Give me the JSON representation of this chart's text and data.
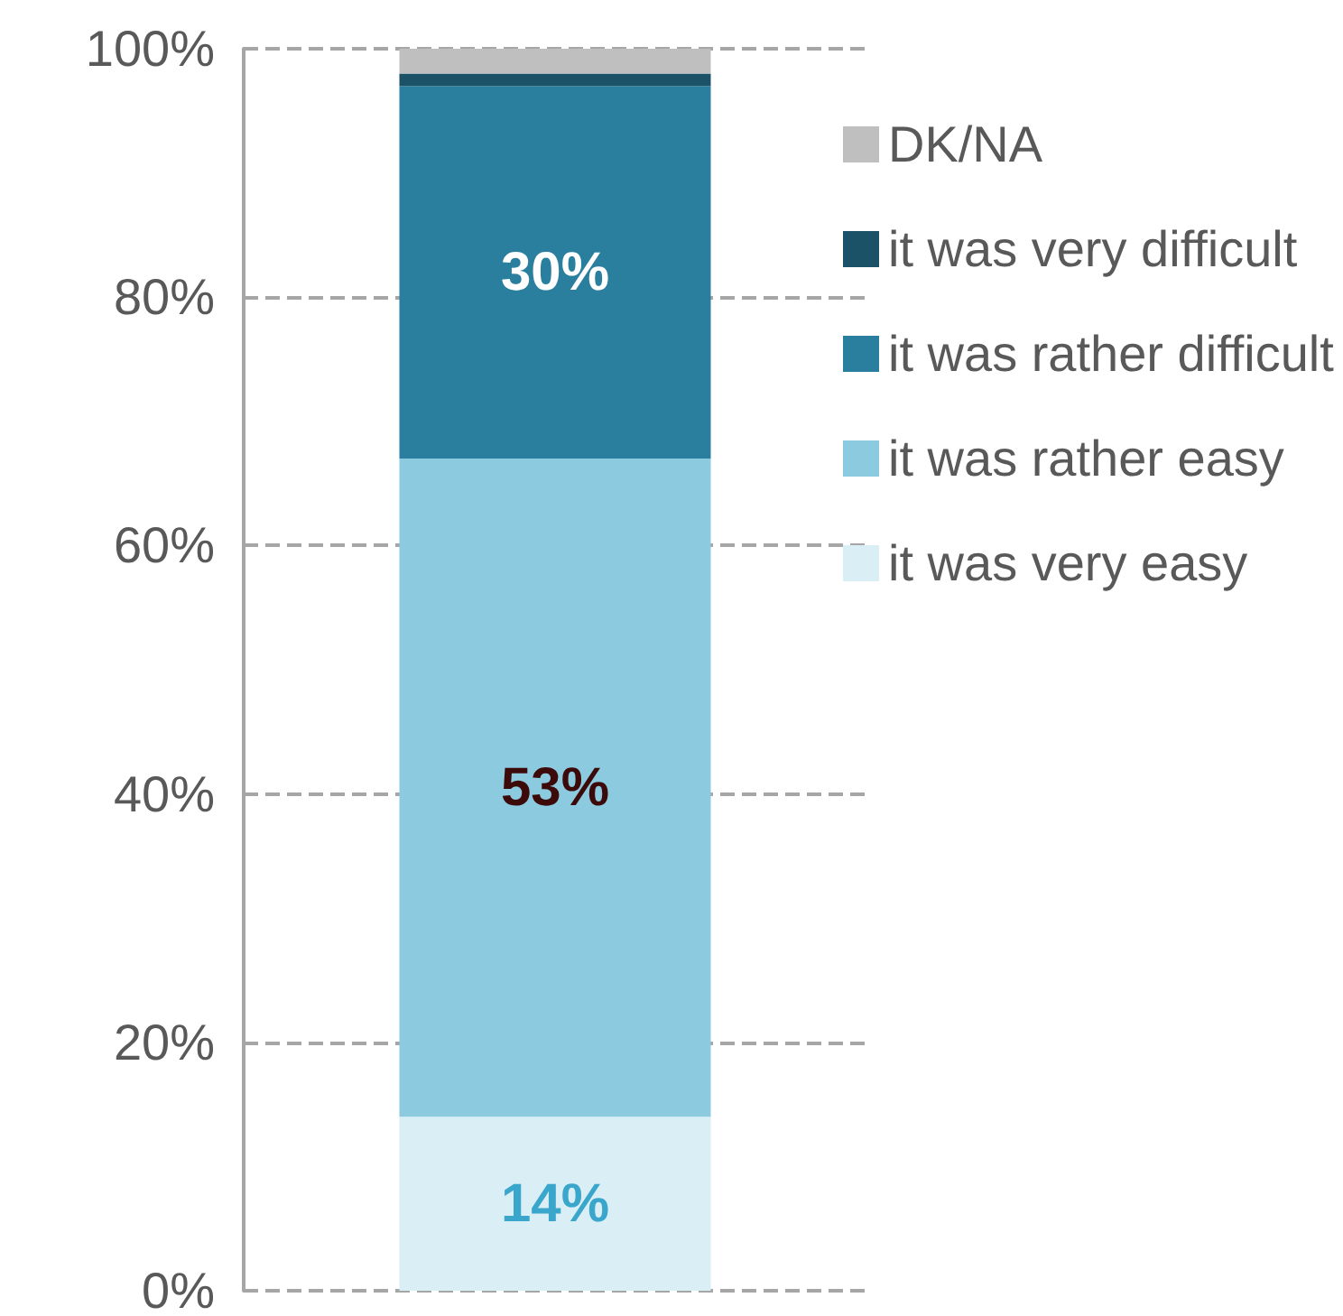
{
  "chart_data": {
    "type": "bar",
    "stacked": true,
    "categories": [
      null
    ],
    "series": [
      {
        "name": "it was very easy",
        "color": "#daeef5",
        "values": [
          14
        ],
        "value_labels": [
          "14%"
        ]
      },
      {
        "name": "it was rather easy",
        "color": "#8ccae0",
        "values": [
          53
        ],
        "value_labels": [
          "53%"
        ]
      },
      {
        "name": "it was rather difficult",
        "color": "#2a7f9e",
        "values": [
          30
        ],
        "value_labels": [
          "30%"
        ]
      },
      {
        "name": "it was very difficult",
        "color": "#1c5268",
        "values": [
          1
        ],
        "value_labels": [
          null
        ]
      },
      {
        "name": "DK/NA",
        "color": "#bfbfbf",
        "values": [
          2
        ],
        "value_labels": [
          null
        ]
      }
    ],
    "ylim": [
      0,
      100
    ],
    "yticks": [
      {
        "value": 0,
        "label": "0%"
      },
      {
        "value": 20,
        "label": "20%"
      },
      {
        "value": 40,
        "label": "40%"
      },
      {
        "value": 60,
        "label": "60%"
      },
      {
        "value": 80,
        "label": "80%"
      },
      {
        "value": 100,
        "label": "100%"
      }
    ],
    "grid": "y",
    "legend": "right",
    "tick_labels": "y"
  }
}
